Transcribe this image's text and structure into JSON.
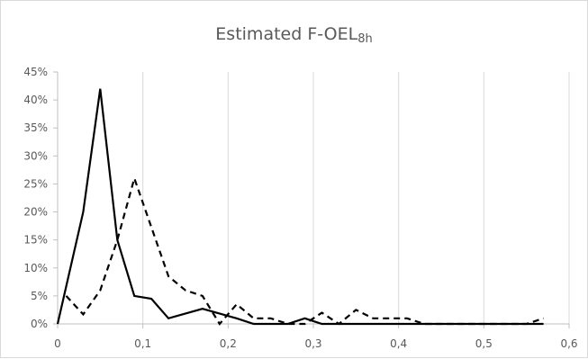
{
  "chart_data": {
    "type": "line",
    "title": "Estimated F-OEL",
    "title_subscript": "8h",
    "xlabel": "",
    "ylabel": "",
    "xlim": [
      0,
      0.6
    ],
    "ylim": [
      0,
      0.45
    ],
    "x_ticks": [
      0,
      0.1,
      0.2,
      0.3,
      0.4,
      0.5,
      0.6
    ],
    "x_tick_labels": [
      "0",
      "0,1",
      "0,2",
      "0,3",
      "0,4",
      "0,5",
      "0,6"
    ],
    "y_ticks": [
      0,
      0.05,
      0.1,
      0.15,
      0.2,
      0.25,
      0.3,
      0.35,
      0.4,
      0.45
    ],
    "y_tick_labels": [
      "0%",
      "5%",
      "10%",
      "15%",
      "20%",
      "25%",
      "30%",
      "35%",
      "40%",
      "45%"
    ],
    "grid": "vertical",
    "legend": "none",
    "series": [
      {
        "style": "solid",
        "color": "#000000",
        "points": [
          [
            0.0,
            0.0
          ],
          [
            0.03,
            0.2
          ],
          [
            0.05,
            0.42
          ],
          [
            0.07,
            0.15
          ],
          [
            0.09,
            0.05
          ],
          [
            0.11,
            0.045
          ],
          [
            0.13,
            0.01
          ],
          [
            0.17,
            0.027
          ],
          [
            0.21,
            0.01
          ],
          [
            0.23,
            0.0
          ],
          [
            0.27,
            0.0
          ],
          [
            0.29,
            0.01
          ],
          [
            0.31,
            0.0
          ],
          [
            0.57,
            0.0
          ]
        ]
      },
      {
        "style": "dashed",
        "color": "#000000",
        "points": [
          [
            0.01,
            0.05
          ],
          [
            0.03,
            0.017
          ],
          [
            0.05,
            0.06
          ],
          [
            0.07,
            0.15
          ],
          [
            0.09,
            0.26
          ],
          [
            0.13,
            0.085
          ],
          [
            0.15,
            0.06
          ],
          [
            0.17,
            0.05
          ],
          [
            0.19,
            0.0
          ],
          [
            0.21,
            0.035
          ],
          [
            0.23,
            0.01
          ],
          [
            0.25,
            0.01
          ],
          [
            0.27,
            0.0
          ],
          [
            0.29,
            0.0
          ],
          [
            0.31,
            0.02
          ],
          [
            0.33,
            0.0
          ],
          [
            0.35,
            0.025
          ],
          [
            0.37,
            0.01
          ],
          [
            0.41,
            0.01
          ],
          [
            0.43,
            0.0
          ],
          [
            0.55,
            0.0
          ],
          [
            0.57,
            0.01
          ]
        ]
      }
    ]
  }
}
